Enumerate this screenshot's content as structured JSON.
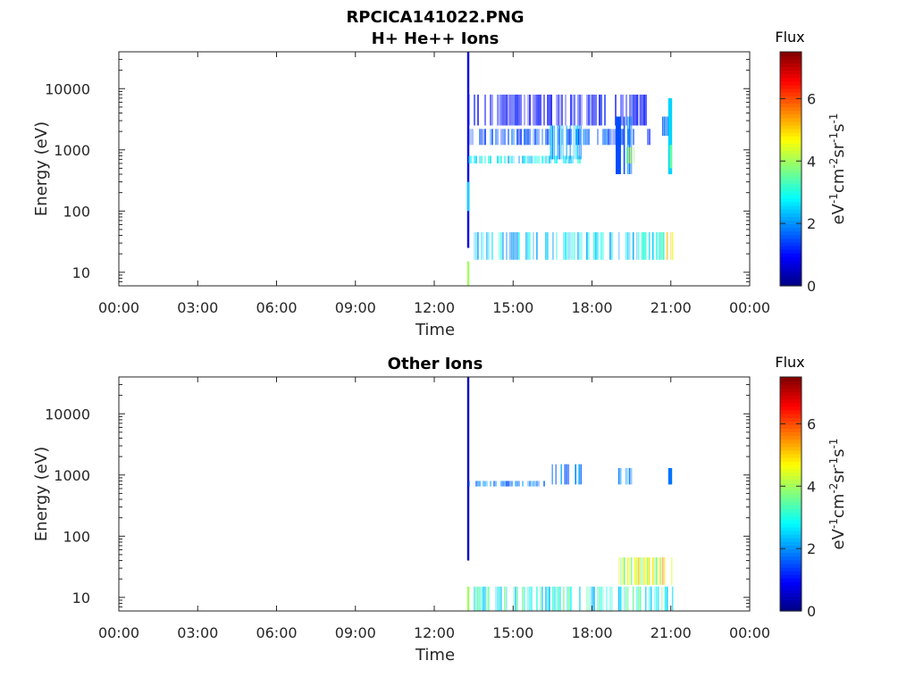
{
  "figure": {
    "title_line1": "RPCICA141022.PNG",
    "colors": {
      "axis": "#262626",
      "background": "#ffffff"
    }
  },
  "chart_data": [
    {
      "type": "heatmap",
      "title": "H+ He++ Ions",
      "xlabel": "Time",
      "ylabel": "Energy (eV)",
      "x_ticks": [
        "00:00",
        "03:00",
        "06:00",
        "09:00",
        "12:00",
        "15:00",
        "18:00",
        "21:00",
        "00:00"
      ],
      "x_range_hours": [
        0,
        24
      ],
      "y_scale": "log",
      "y_range": [
        6,
        40000
      ],
      "y_ticks": [
        {
          "value": 10,
          "label": "10"
        },
        {
          "value": 100,
          "label": "100"
        },
        {
          "value": 1000,
          "label": "1000"
        },
        {
          "value": 10000,
          "label": "10000"
        }
      ],
      "colorbar": {
        "title": "Flux",
        "label": "eV-1cm-2sr-1s-1",
        "range": [
          0,
          7.5
        ],
        "ticks": [
          "0",
          "2",
          "4",
          "6"
        ],
        "colormap": "jet"
      },
      "features": [
        {
          "hours": [
            13.25,
            13.33
          ],
          "energy_eV": [
            25,
            40000
          ],
          "flux": 0.8
        },
        {
          "hours": [
            13.25,
            13.33
          ],
          "energy_eV": [
            100,
            300
          ],
          "flux": 2.5
        },
        {
          "hours": [
            13.25,
            13.33
          ],
          "energy_eV": [
            6,
            15
          ],
          "flux": 4.0
        },
        {
          "hours": [
            13.3,
            17.6
          ],
          "energy_eV": [
            600,
            800
          ],
          "flux": 2.6
        },
        {
          "hours": [
            13.3,
            20.2
          ],
          "energy_eV": [
            1200,
            2200
          ],
          "flux": 1.5
        },
        {
          "hours": [
            13.3,
            20.2
          ],
          "energy_eV": [
            2500,
            8000
          ],
          "flux": 1.0
        },
        {
          "hours": [
            16.4,
            17.6
          ],
          "energy_eV": [
            700,
            2500
          ],
          "flux": 2.0
        },
        {
          "hours": [
            18.9,
            19.1
          ],
          "energy_eV": [
            400,
            3500
          ],
          "flux": 1.5
        },
        {
          "hours": [
            19.2,
            19.7
          ],
          "energy_eV": [
            400,
            3500
          ],
          "flux": 1.8
        },
        {
          "hours": [
            19.3,
            19.6
          ],
          "energy_eV": [
            600,
            1100
          ],
          "flux": 4.0
        },
        {
          "hours": [
            20.6,
            21.0
          ],
          "energy_eV": [
            1700,
            3500
          ],
          "flux": 1.5
        },
        {
          "hours": [
            20.9,
            21.05
          ],
          "energy_eV": [
            400,
            7000
          ],
          "flux": 2.5
        },
        {
          "hours": [
            20.95,
            21.05
          ],
          "energy_eV": [
            500,
            1200
          ],
          "flux": 3.5
        },
        {
          "hours": [
            13.5,
            18.8
          ],
          "energy_eV": [
            16,
            45
          ],
          "flux": 2.5
        },
        {
          "hours": [
            19.0,
            20.7
          ],
          "energy_eV": [
            16,
            45
          ],
          "flux": 2.8
        },
        {
          "hours": [
            20.7,
            21.05
          ],
          "energy_eV": [
            16,
            45
          ],
          "flux": 4.2
        }
      ]
    },
    {
      "type": "heatmap",
      "title": "Other Ions",
      "xlabel": "Time",
      "ylabel": "Energy (eV)",
      "x_ticks": [
        "00:00",
        "03:00",
        "06:00",
        "09:00",
        "12:00",
        "15:00",
        "18:00",
        "21:00",
        "00:00"
      ],
      "x_range_hours": [
        0,
        24
      ],
      "y_scale": "log",
      "y_range": [
        6,
        40000
      ],
      "y_ticks": [
        {
          "value": 10,
          "label": "10"
        },
        {
          "value": 100,
          "label": "100"
        },
        {
          "value": 1000,
          "label": "1000"
        },
        {
          "value": 10000,
          "label": "10000"
        }
      ],
      "colorbar": {
        "title": "Flux",
        "label": "eV-1cm-2sr-1s-1",
        "range": [
          0,
          7.5
        ],
        "ticks": [
          "0",
          "2",
          "4",
          "6"
        ],
        "colormap": "jet"
      },
      "features": [
        {
          "hours": [
            13.25,
            13.33
          ],
          "energy_eV": [
            40,
            40000
          ],
          "flux": 0.5
        },
        {
          "hours": [
            13.25,
            13.33
          ],
          "energy_eV": [
            6,
            15
          ],
          "flux": 4.0
        },
        {
          "hours": [
            13.3,
            16.2
          ],
          "energy_eV": [
            650,
            800
          ],
          "flux": 1.8
        },
        {
          "hours": [
            16.4,
            17.6
          ],
          "energy_eV": [
            700,
            1500
          ],
          "flux": 1.8
        },
        {
          "hours": [
            19.0,
            19.5
          ],
          "energy_eV": [
            700,
            1300
          ],
          "flux": 1.8
        },
        {
          "hours": [
            20.9,
            21.05
          ],
          "energy_eV": [
            700,
            1300
          ],
          "flux": 1.8
        },
        {
          "hours": [
            13.5,
            18.8
          ],
          "energy_eV": [
            6,
            15
          ],
          "flux": 3.0
        },
        {
          "hours": [
            19.0,
            21.05
          ],
          "energy_eV": [
            6,
            15
          ],
          "flux": 3.0
        },
        {
          "hours": [
            19.0,
            20.6
          ],
          "energy_eV": [
            16,
            45
          ],
          "flux": 4.3
        },
        {
          "hours": [
            20.6,
            21.05
          ],
          "energy_eV": [
            16,
            45
          ],
          "flux": 5.0
        }
      ]
    }
  ]
}
